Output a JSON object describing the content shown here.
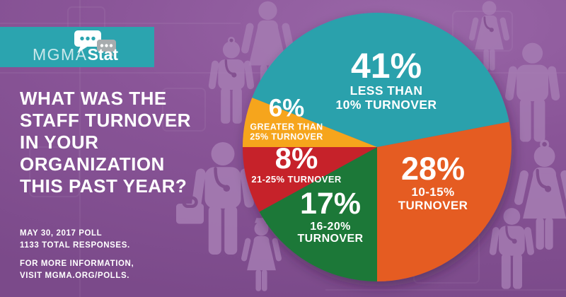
{
  "page": {
    "bg_color": "#8a5598",
    "silhouette_color": "#a77eb4",
    "text_color": "#ffffff"
  },
  "brand": {
    "icon": "speech-bubbles",
    "name_light": "MGMA",
    "name_bold": "Stat",
    "box_color": "#2ba4af"
  },
  "question": {
    "lines": [
      "WHAT WAS THE",
      "STAFF TURNOVER",
      "IN YOUR",
      "ORGANIZATION",
      "THIS PAST YEAR?"
    ]
  },
  "footer": {
    "poll_lines": [
      "MAY 30, 2017 POLL",
      "1133 TOTAL RESPONSES."
    ],
    "info_lines": [
      "FOR MORE INFORMATION,",
      "VISIT MGMA.ORG/POLLS."
    ]
  },
  "chart_data": {
    "type": "pie",
    "question": "WHAT WAS THE STAFF TURNOVER IN YOUR ORGANIZATION THIS PAST YEAR?",
    "poll_date": "MAY 30, 2017",
    "total_responses": 1133,
    "start_angle_deg": 158.4,
    "direction": "clockwise",
    "label_text_color": "#ffffff",
    "legend": "none",
    "segments": [
      {
        "pct_label": "41%",
        "value": 41,
        "label": "LESS THAN 10% TURNOVER",
        "label_lines": [
          "LESS THAN",
          "10% TURNOVER"
        ],
        "color": "#2aa1ac"
      },
      {
        "pct_label": "28%",
        "value": 28,
        "label": "10-15% TURNOVER",
        "label_lines": [
          "10-15%",
          "TURNOVER"
        ],
        "color": "#e55c23"
      },
      {
        "pct_label": "17%",
        "value": 17,
        "label": "16-20% TURNOVER",
        "label_lines": [
          "16-20%",
          "TURNOVER"
        ],
        "color": "#1b7839"
      },
      {
        "pct_label": "8%",
        "value": 8,
        "label": "21-25% TURNOVER",
        "label_lines": [
          "21-25% TURNOVER"
        ],
        "color": "#c6202a"
      },
      {
        "pct_label": "6%",
        "value": 6,
        "label": "GREATER THAN 25% TURNOVER",
        "label_lines": [
          "GREATER THAN",
          "25% TURNOVER"
        ],
        "color": "#f6a51b"
      }
    ]
  }
}
